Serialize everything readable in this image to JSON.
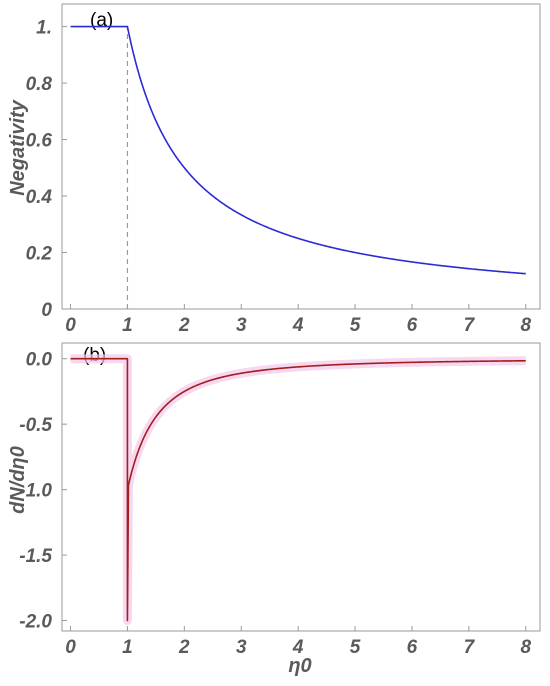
{
  "chart_data": [
    {
      "type": "line",
      "panel_label": "(a)",
      "xlabel": "",
      "ylabel": "Negativity",
      "xlim": [
        -0.15,
        8.25
      ],
      "ylim": [
        0,
        1.08
      ],
      "xticks": [
        "0",
        "1",
        "2",
        "3",
        "4",
        "5",
        "6",
        "7",
        "8"
      ],
      "yticks": [
        "0",
        "0.2",
        "0.4",
        "0.6",
        "0.8",
        "1."
      ],
      "annotations": [
        {
          "type": "vline-dashed",
          "x": 1,
          "from": 0,
          "to": 1
        }
      ],
      "series": [
        {
          "color": "#2b2bd6",
          "x": [
            0,
            0.5,
            1,
            1.5,
            2,
            2.5,
            3,
            3.5,
            4,
            4.5,
            5,
            5.5,
            6,
            6.5,
            7,
            7.5,
            8
          ],
          "y": [
            1,
            1,
            1,
            0.667,
            0.5,
            0.4,
            0.333,
            0.286,
            0.25,
            0.222,
            0.2,
            0.182,
            0.167,
            0.154,
            0.143,
            0.133,
            0.125
          ]
        }
      ]
    },
    {
      "type": "line",
      "panel_label": "(b)",
      "xlabel": "η0",
      "ylabel": "dN/dη0",
      "xlim": [
        -0.15,
        8.25
      ],
      "ylim": [
        -2.08,
        0.12
      ],
      "xticks": [
        "0",
        "1",
        "2",
        "3",
        "4",
        "5",
        "6",
        "7",
        "8"
      ],
      "yticks": [
        "0.0",
        "-0.5",
        "-1.0",
        "-1.5",
        "-2.0"
      ],
      "series": [
        {
          "color": "#a01e1e",
          "x": [
            0,
            0.5,
            1,
            1.5,
            2,
            2.5,
            3,
            3.5,
            4,
            4.5,
            5,
            5.5,
            6,
            6.5,
            7,
            7.5,
            8
          ],
          "y": [
            0,
            0,
            -2,
            -0.444,
            -0.25,
            -0.16,
            -0.111,
            -0.082,
            -0.0625,
            -0.049,
            -0.04,
            -0.033,
            -0.028,
            -0.024,
            -0.02,
            -0.018,
            -0.016
          ]
        }
      ]
    }
  ]
}
